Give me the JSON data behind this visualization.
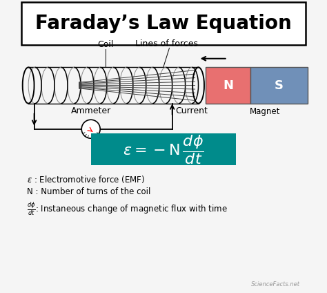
{
  "title": "Faraday’s Law Equation",
  "bg_color": "#f5f5f5",
  "title_box_color": "#ffffff",
  "title_border_color": "#000000",
  "title_fontsize": 20,
  "magnet_N_color": "#e87070",
  "magnet_S_color": "#7090b8",
  "magnet_label_N": "N",
  "magnet_label_S": "S",
  "magnet_label": "Magnet",
  "coil_label": "Coil",
  "lines_label": "Lines of forces",
  "ammeter_label": "Ammeter",
  "current_label": "Current",
  "equation_bg": "#008b8b",
  "equation_text_color": "#ffffff",
  "legend1_sym": "$\\varepsilon$",
  "legend1_text": " : Electromotive force (EMF)",
  "legend2": "N : Number of turns of the coil",
  "legend3_sym": "$\\frac{d\\phi}{dt}$",
  "legend3_text": ": Instaneous change of magnetic flux with time",
  "watermark": "ScienceFacts.net"
}
